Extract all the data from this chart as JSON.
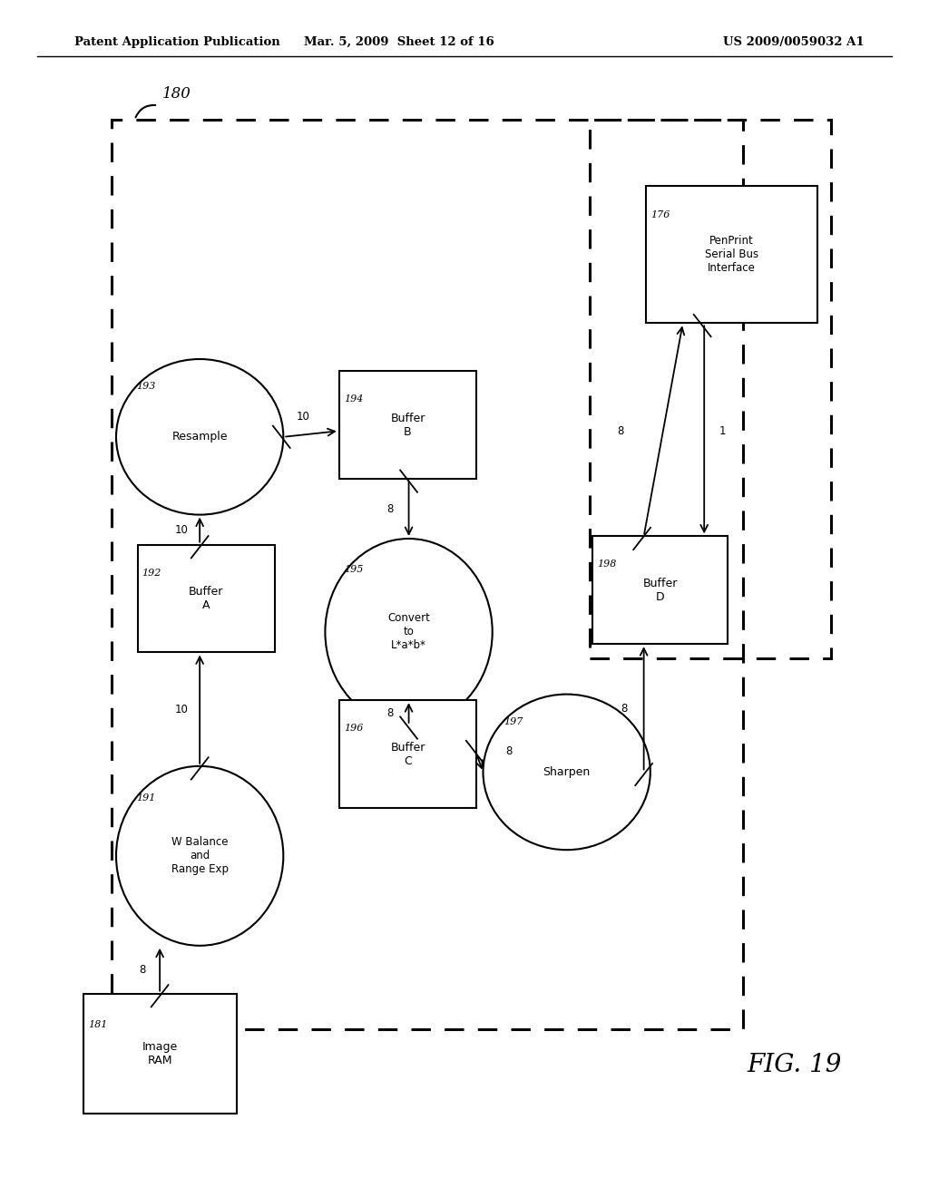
{
  "bg_color": "#ffffff",
  "header_left": "Patent Application Publication",
  "header_mid": "Mar. 5, 2009  Sheet 12 of 16",
  "header_right": "US 2009/0059032 A1",
  "fig_label": "FIG. 19"
}
